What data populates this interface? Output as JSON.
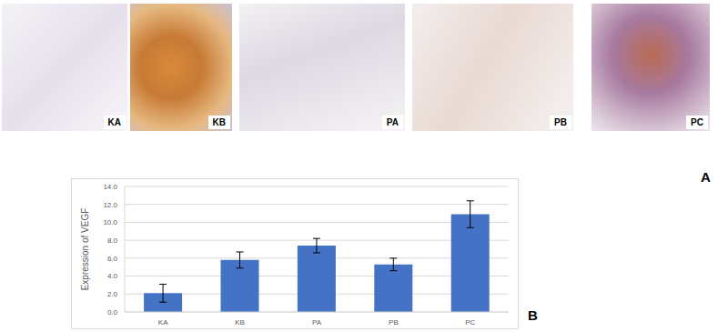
{
  "figure": {
    "image_panels": [
      "KA",
      "KB",
      "PA",
      "PB",
      "PC"
    ],
    "image_panel_label": "A",
    "chart_panel_label": "B"
  },
  "chart_data": {
    "type": "bar",
    "y_label": "Expression of VEGF",
    "categories": [
      "KA",
      "KB",
      "PA",
      "PB",
      "PC"
    ],
    "values": [
      2.1,
      5.8,
      7.4,
      5.3,
      10.9
    ],
    "errors": [
      1.0,
      0.9,
      0.8,
      0.7,
      1.5
    ],
    "color": "#4472c4",
    "ylim": [
      0,
      14
    ],
    "yticks": [
      {
        "value": 0,
        "label": "0.0"
      },
      {
        "value": 2,
        "label": "2.0"
      },
      {
        "value": 4,
        "label": "4.0"
      },
      {
        "value": 6,
        "label": "6.0"
      },
      {
        "value": 8,
        "label": "8.0"
      },
      {
        "value": 10,
        "label": "10.0"
      },
      {
        "value": 12,
        "label": "12.0"
      },
      {
        "value": 14,
        "label": "14.0"
      }
    ],
    "grid": true
  }
}
